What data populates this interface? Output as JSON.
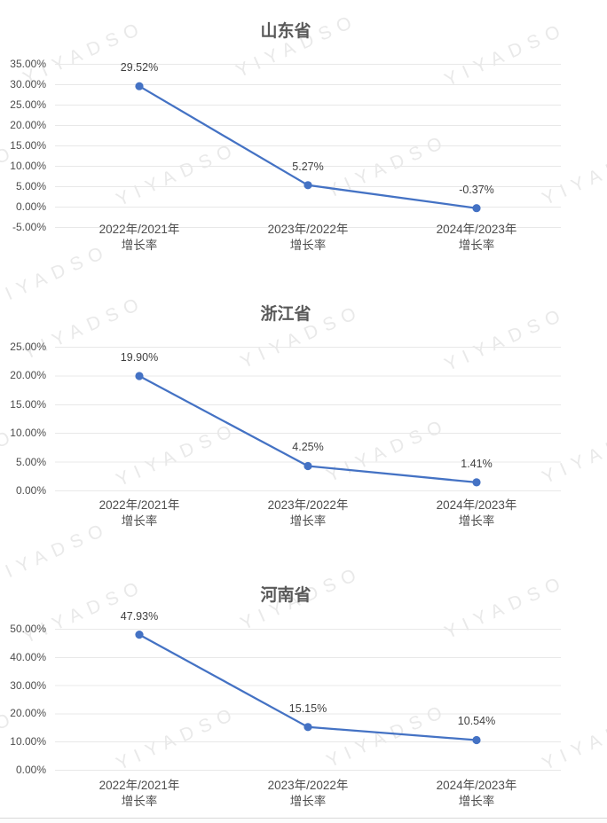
{
  "page": {
    "background_color": "#ffffff",
    "divider_color": "#d9d9d9"
  },
  "watermark": {
    "text": "YIYADSO"
  },
  "chart_style": {
    "line_color": "#4472C4",
    "marker_color": "#4472C4",
    "grid_color": "#e8e8e8",
    "title_color": "#595959",
    "tick_color": "#4d4d4d",
    "data_label_color": "#404040"
  },
  "chart_data": [
    {
      "type": "line",
      "title": "山东省",
      "categories": [
        [
          "2022年/2021年",
          "增长率"
        ],
        [
          "2023年/2022年",
          "增长率"
        ],
        [
          "2024年/2023年",
          "增长率"
        ]
      ],
      "values": [
        29.52,
        5.27,
        -0.37
      ],
      "data_labels": [
        "29.52%",
        "5.27%",
        "-0.37%"
      ],
      "ytick_values": [
        35,
        30,
        25,
        20,
        15,
        10,
        5,
        0,
        -5
      ],
      "ytick_labels": [
        "35.00%",
        "30.00%",
        "25.00%",
        "20.00%",
        "15.00%",
        "10.00%",
        "5.00%",
        "0.00%",
        "-5.00%"
      ],
      "ylim": [
        -5,
        35
      ],
      "grid": true,
      "legend": "none"
    },
    {
      "type": "line",
      "title": "浙江省",
      "categories": [
        [
          "2022年/2021年",
          "增长率"
        ],
        [
          "2023年/2022年",
          "增长率"
        ],
        [
          "2024年/2023年",
          "增长率"
        ]
      ],
      "values": [
        19.9,
        4.25,
        1.41
      ],
      "data_labels": [
        "19.90%",
        "4.25%",
        "1.41%"
      ],
      "ytick_values": [
        25,
        20,
        15,
        10,
        5,
        0
      ],
      "ytick_labels": [
        "25.00%",
        "20.00%",
        "15.00%",
        "10.00%",
        "5.00%",
        "0.00%"
      ],
      "ylim": [
        0,
        25
      ],
      "grid": true,
      "legend": "none"
    },
    {
      "type": "line",
      "title": "河南省",
      "categories": [
        [
          "2022年/2021年",
          "增长率"
        ],
        [
          "2023年/2022年",
          "增长率"
        ],
        [
          "2024年/2023年",
          "增长率"
        ]
      ],
      "values": [
        47.93,
        15.15,
        10.54
      ],
      "data_labels": [
        "47.93%",
        "15.15%",
        "10.54%"
      ],
      "ytick_values": [
        50,
        40,
        30,
        20,
        10,
        0
      ],
      "ytick_labels": [
        "50.00%",
        "40.00%",
        "30.00%",
        "20.00%",
        "10.00%",
        "0.00%"
      ],
      "ylim": [
        0,
        50
      ],
      "grid": true,
      "legend": "none"
    }
  ]
}
